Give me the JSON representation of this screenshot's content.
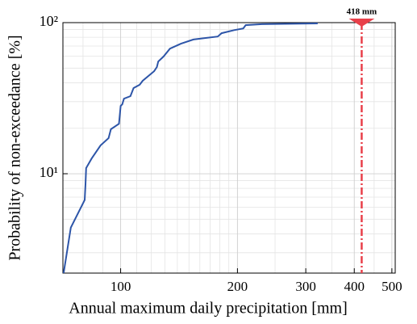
{
  "chart_data": {
    "type": "line",
    "xlabel": "Annual maximum daily precipitation [mm]",
    "ylabel": "Probability of non-exceedance [%]",
    "log_x": true,
    "log_y": true,
    "grid": true,
    "xlim": [
      71,
      510
    ],
    "ylim": [
      2.2,
      100
    ],
    "xticks": [
      100,
      200,
      300,
      400,
      500
    ],
    "xminorticks": [
      80,
      90,
      110,
      120,
      130,
      140,
      150,
      160,
      170,
      180,
      190,
      250,
      350,
      450
    ],
    "yticks": [
      {
        "value": 10,
        "label": "10¹"
      },
      {
        "value": 100,
        "label": "10²"
      }
    ],
    "yminorticks": [
      3,
      4,
      5,
      6,
      7,
      8,
      9,
      20,
      30,
      40,
      50,
      60,
      70,
      80,
      90
    ],
    "series": [
      {
        "color": "#2d55a8",
        "x": [
          71.3,
          74.4,
          80.8,
          81.2,
          81.5,
          84.2,
          88.8,
          93.1,
          94.4,
          99,
          100,
          101,
          102,
          106,
          108,
          112,
          114,
          122,
          124,
          125,
          129,
          134,
          143,
          154,
          178,
          182,
          196,
          207,
          210,
          231,
          322
        ],
        "values": [
          2.2,
          4.4,
          6.7,
          8.5,
          10.9,
          12.6,
          15.4,
          17.2,
          19.7,
          21.4,
          28.1,
          28.8,
          31.4,
          32.6,
          36.9,
          38.8,
          41.2,
          47.7,
          50.8,
          55.3,
          59.7,
          67.3,
          72.5,
          77.3,
          80.9,
          85.1,
          89.2,
          91.5,
          96.3,
          97.7,
          98.8
        ]
      }
    ],
    "annotation": {
      "value": 418,
      "label": "418 mm",
      "color": "#e8404a"
    }
  }
}
